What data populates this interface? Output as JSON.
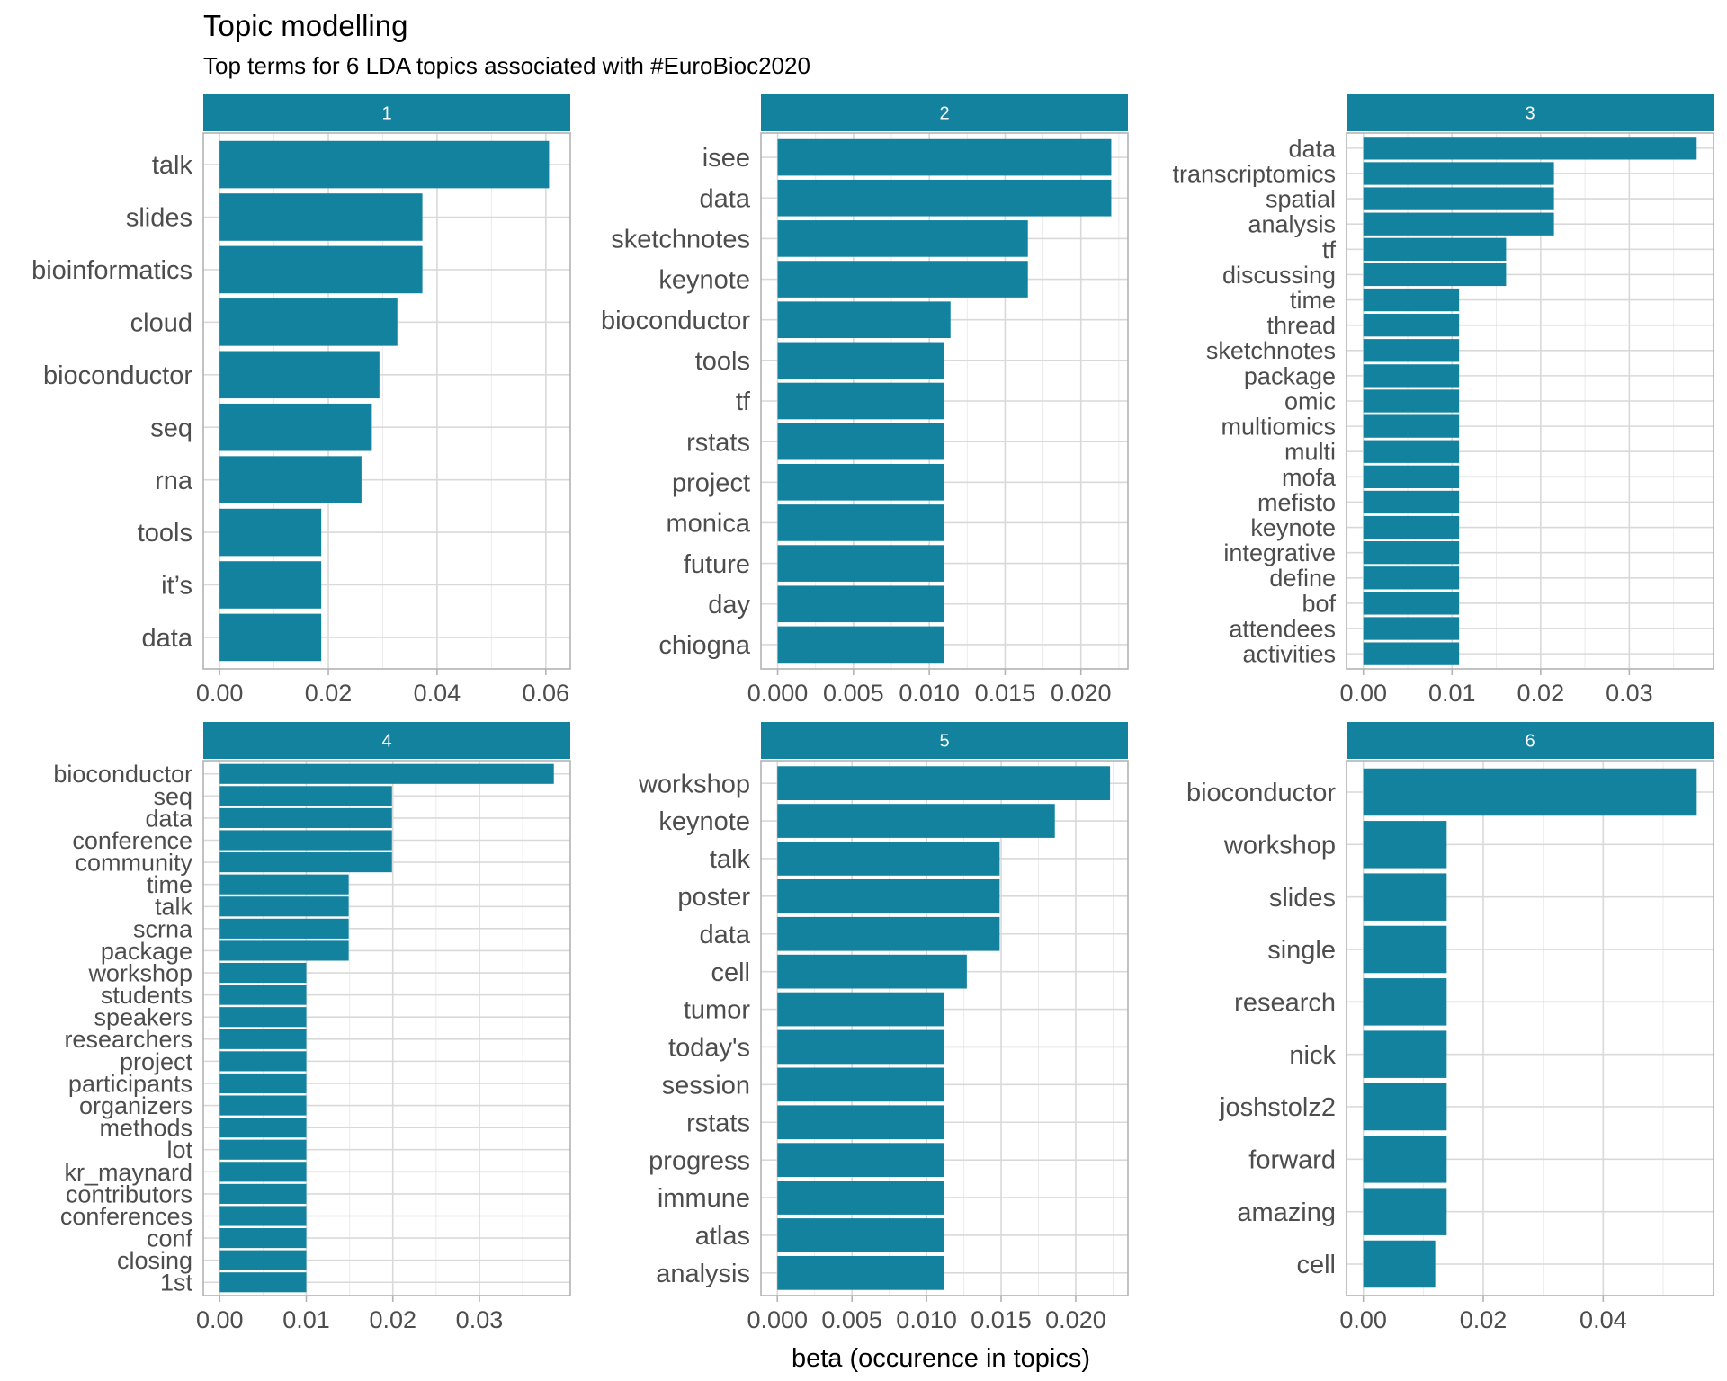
{
  "chart_data": {
    "type": "bar",
    "orientation": "horizontal",
    "title": "Topic modelling",
    "subtitle": "Top terms for 6 LDA topics associated with #EuroBioc2020",
    "xlabel": "beta (occurence in topics)",
    "ylabel": "",
    "bar_color": "#12829f",
    "strip_color": "#12829f",
    "grid": true,
    "facets": [
      {
        "label": "1",
        "xlim": [
          -0.003,
          0.0645
        ],
        "xticks": [
          0,
          0.02,
          0.04,
          0.06
        ],
        "xtick_labels": [
          "0.00",
          "0.02",
          "0.04",
          "0.06"
        ],
        "terms": [
          "talk",
          "slides",
          "bioinformatics",
          "cloud",
          "bioconductor",
          "seq",
          "rna",
          "tools",
          "it’s",
          "data"
        ],
        "values": [
          0.0606,
          0.0373,
          0.0373,
          0.0327,
          0.0294,
          0.028,
          0.0261,
          0.0187,
          0.0187,
          0.0187
        ]
      },
      {
        "label": "2",
        "xlim": [
          -0.0011,
          0.0231
        ],
        "xticks": [
          0,
          0.005,
          0.01,
          0.015,
          0.02
        ],
        "xtick_labels": [
          "0.000",
          "0.005",
          "0.010",
          "0.015",
          "0.020"
        ],
        "terms": [
          "isee",
          "data",
          "sketchnotes",
          "keynote",
          "bioconductor",
          "tools",
          "tf",
          "rstats",
          "project",
          "monica",
          "future",
          "day",
          "chiogna"
        ],
        "values": [
          0.022,
          0.022,
          0.0165,
          0.0165,
          0.0114,
          0.011,
          0.011,
          0.011,
          0.011,
          0.011,
          0.011,
          0.011,
          0.011
        ]
      },
      {
        "label": "3",
        "xlim": [
          -0.0019,
          0.0395
        ],
        "xticks": [
          0,
          0.01,
          0.02,
          0.03
        ],
        "xtick_labels": [
          "0.00",
          "0.01",
          "0.02",
          "0.03"
        ],
        "terms": [
          "data",
          "transcriptomics",
          "spatial",
          "analysis",
          "tf",
          "discussing",
          "time",
          "thread",
          "sketchnotes",
          "package",
          "omic",
          "multiomics",
          "multi",
          "mofa",
          "mefisto",
          "keynote",
          "integrative",
          "define",
          "bof",
          "attendees",
          "activities"
        ],
        "values": [
          0.0376,
          0.0215,
          0.0215,
          0.0215,
          0.0161,
          0.0161,
          0.0108,
          0.0108,
          0.0108,
          0.0108,
          0.0108,
          0.0108,
          0.0108,
          0.0108,
          0.0108,
          0.0108,
          0.0108,
          0.0108,
          0.0108,
          0.0108,
          0.0108
        ]
      },
      {
        "label": "4",
        "xlim": [
          -0.0019,
          0.0405
        ],
        "xticks": [
          0,
          0.01,
          0.02,
          0.03
        ],
        "xtick_labels": [
          "0.00",
          "0.01",
          "0.02",
          "0.03"
        ],
        "terms": [
          "bioconductor",
          "seq",
          "data",
          "conference",
          "community",
          "time",
          "talk",
          "scrna",
          "package",
          "workshop",
          "students",
          "speakers",
          "researchers",
          "project",
          "participants",
          "organizers",
          "methods",
          "lot",
          "kr_maynard",
          "contributors",
          "conferences",
          "conf",
          "closing",
          "1st"
        ],
        "values": [
          0.0386,
          0.0199,
          0.0199,
          0.0199,
          0.0199,
          0.0149,
          0.0149,
          0.0149,
          0.0149,
          0.01,
          0.01,
          0.01,
          0.01,
          0.01,
          0.01,
          0.01,
          0.01,
          0.01,
          0.01,
          0.01,
          0.01,
          0.01,
          0.01,
          0.01
        ]
      },
      {
        "label": "5",
        "xlim": [
          -0.0011,
          0.0235
        ],
        "xticks": [
          0,
          0.005,
          0.01,
          0.015,
          0.02
        ],
        "xtick_labels": [
          "0.000",
          "0.005",
          "0.010",
          "0.015",
          "0.020"
        ],
        "terms": [
          "workshop",
          "keynote",
          "talk",
          "poster",
          "data",
          "cell",
          "tumor",
          "today's",
          "session",
          "rstats",
          "progress",
          "immune",
          "atlas",
          "analysis"
        ],
        "values": [
          0.0223,
          0.0186,
          0.0149,
          0.0149,
          0.0149,
          0.0127,
          0.0112,
          0.0112,
          0.0112,
          0.0112,
          0.0112,
          0.0112,
          0.0112,
          0.0112
        ]
      },
      {
        "label": "6",
        "xlim": [
          -0.0028,
          0.0584
        ],
        "xticks": [
          0,
          0.02,
          0.04
        ],
        "xtick_labels": [
          "0.00",
          "0.02",
          "0.04"
        ],
        "terms": [
          "bioconductor",
          "workshop",
          "slides",
          "single",
          "research",
          "nick",
          "joshstolz2",
          "forward",
          "amazing",
          "cell"
        ],
        "values": [
          0.0556,
          0.0139,
          0.0139,
          0.0139,
          0.0139,
          0.0139,
          0.0139,
          0.0139,
          0.0139,
          0.012
        ]
      }
    ]
  }
}
